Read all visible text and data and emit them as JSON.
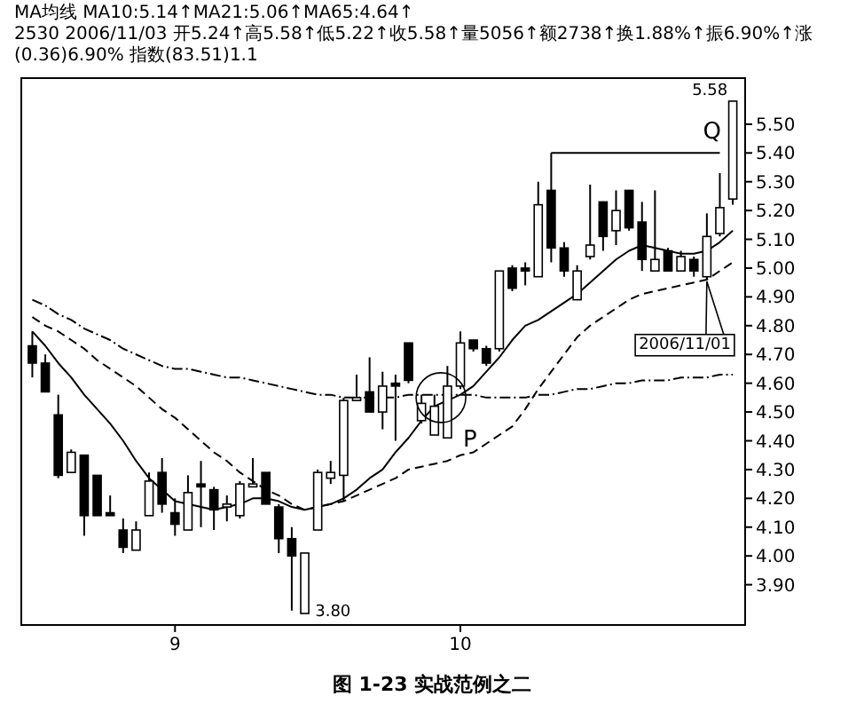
{
  "chart_data": {
    "type": "candlestick",
    "title": "图 1-23  实战范例之二",
    "annotations": [
      "MA均线 MA10:5.14↑MA21:5.06↑MA65:4.64↑",
      "2530 2006/11/03 开5.24↑高5.58↑低5.22↑收5.58↑量5056↑额2738↑换1.88%↑振6.90%↑涨(0.36)6.90% 指数(83.51)1.1",
      "P",
      "Q",
      "2006/11/01",
      "5.58",
      "3.80"
    ],
    "categories": [
      null,
      null,
      null,
      null,
      null,
      null,
      null,
      null,
      null,
      null,
      null,
      "9",
      null,
      null,
      null,
      null,
      null,
      null,
      null,
      null,
      null,
      null,
      null,
      null,
      null,
      null,
      null,
      null,
      null,
      null,
      null,
      null,
      null,
      "10",
      null,
      null,
      null,
      null,
      null,
      null,
      null,
      null,
      null,
      null,
      null,
      null,
      null,
      null,
      null,
      null,
      null,
      null,
      null,
      null,
      null
    ],
    "ohlc": [
      [
        4.73,
        4.78,
        4.62,
        4.67
      ],
      [
        4.67,
        4.7,
        4.57,
        4.57
      ],
      [
        4.49,
        4.56,
        4.27,
        4.28
      ],
      [
        4.29,
        4.37,
        4.29,
        4.36
      ],
      [
        4.35,
        4.35,
        4.07,
        4.14
      ],
      [
        4.28,
        4.28,
        4.14,
        4.14
      ],
      [
        4.15,
        4.21,
        4.14,
        4.14
      ],
      [
        4.09,
        4.13,
        4.01,
        4.03
      ],
      [
        4.02,
        4.12,
        4.02,
        4.09
      ],
      [
        4.14,
        4.29,
        4.14,
        4.26
      ],
      [
        4.29,
        4.34,
        4.15,
        4.18
      ],
      [
        4.15,
        4.2,
        4.07,
        4.11
      ],
      [
        4.09,
        4.28,
        4.09,
        4.22
      ],
      [
        4.25,
        4.33,
        4.1,
        4.24
      ],
      [
        4.23,
        4.24,
        4.09,
        4.16
      ],
      [
        4.17,
        4.21,
        4.12,
        4.18
      ],
      [
        4.14,
        4.26,
        4.13,
        4.25
      ],
      [
        4.24,
        4.34,
        4.24,
        4.25
      ],
      [
        4.29,
        4.29,
        4.18,
        4.18
      ],
      [
        4.17,
        4.18,
        4.01,
        4.06
      ],
      [
        4.06,
        4.1,
        3.81,
        4.0
      ],
      [
        3.8,
        4.01,
        3.8,
        4.01
      ],
      [
        4.09,
        4.3,
        4.09,
        4.29
      ],
      [
        4.27,
        4.33,
        4.25,
        4.29
      ],
      [
        4.28,
        4.55,
        4.19,
        4.54
      ],
      [
        4.54,
        4.63,
        4.54,
        4.55
      ],
      [
        4.57,
        4.69,
        4.5,
        4.5
      ],
      [
        4.5,
        4.64,
        4.44,
        4.59
      ],
      [
        4.6,
        4.63,
        4.4,
        4.59
      ],
      [
        4.74,
        4.74,
        4.6,
        4.61
      ],
      [
        4.47,
        4.56,
        4.46,
        4.53
      ],
      [
        4.42,
        4.56,
        4.42,
        4.52
      ],
      [
        4.41,
        4.66,
        4.41,
        4.59
      ],
      [
        4.59,
        4.78,
        4.58,
        4.74
      ],
      [
        4.75,
        4.75,
        4.71,
        4.72
      ],
      [
        4.72,
        4.73,
        4.66,
        4.67
      ],
      [
        4.72,
        4.99,
        4.71,
        4.99
      ],
      [
        5.0,
        5.01,
        4.92,
        4.93
      ],
      [
        5.0,
        5.02,
        4.94,
        4.99
      ],
      [
        4.97,
        5.3,
        4.97,
        5.22
      ],
      [
        5.27,
        5.4,
        5.02,
        5.07
      ],
      [
        5.07,
        5.09,
        4.97,
        4.99
      ],
      [
        4.89,
        5.01,
        4.89,
        4.99
      ],
      [
        5.04,
        5.29,
        5.03,
        5.08
      ],
      [
        5.23,
        5.23,
        5.06,
        5.11
      ],
      [
        5.13,
        5.27,
        5.08,
        5.2
      ],
      [
        5.27,
        5.27,
        5.13,
        5.14
      ],
      [
        5.16,
        5.23,
        4.99,
        5.03
      ],
      [
        4.99,
        5.27,
        4.99,
        5.03
      ],
      [
        5.06,
        5.07,
        4.99,
        4.99
      ],
      [
        4.99,
        5.06,
        4.99,
        5.04
      ],
      [
        5.03,
        5.04,
        4.97,
        4.99
      ],
      [
        4.97,
        5.19,
        4.96,
        5.11
      ],
      [
        5.12,
        5.33,
        5.11,
        5.21
      ],
      [
        5.24,
        5.58,
        5.22,
        5.58
      ]
    ],
    "series": [
      {
        "type": "line",
        "line_style": "solid",
        "color": "#000000",
        "values": [
          4.78,
          4.73,
          4.67,
          4.62,
          4.56,
          4.51,
          4.46,
          4.4,
          4.33,
          4.27,
          4.23,
          4.19,
          4.18,
          4.17,
          4.16,
          4.17,
          4.18,
          4.2,
          4.2,
          4.19,
          4.17,
          4.16,
          4.17,
          4.18,
          4.2,
          4.23,
          4.27,
          4.3,
          4.36,
          4.41,
          4.47,
          4.52,
          4.54,
          4.56,
          4.59,
          4.64,
          4.69,
          4.75,
          4.8,
          4.82,
          4.85,
          4.88,
          4.91,
          4.95,
          4.99,
          5.03,
          5.06,
          5.08,
          5.07,
          5.06,
          5.05,
          5.05,
          5.06,
          5.09,
          5.13
        ]
      },
      {
        "type": "line",
        "line_style": "dashed",
        "color": "#000000",
        "values": [
          4.83,
          4.8,
          4.78,
          4.75,
          4.72,
          4.68,
          4.65,
          4.62,
          4.59,
          4.55,
          4.51,
          4.48,
          4.44,
          4.4,
          4.36,
          4.33,
          4.29,
          4.26,
          4.23,
          4.21,
          4.18,
          4.16,
          4.17,
          4.18,
          4.19,
          4.21,
          4.23,
          4.25,
          4.27,
          4.3,
          4.31,
          4.32,
          4.33,
          4.35,
          4.36,
          4.39,
          4.42,
          4.45,
          4.51,
          4.58,
          4.64,
          4.7,
          4.76,
          4.8,
          4.83,
          4.86,
          4.89,
          4.91,
          4.92,
          4.93,
          4.94,
          4.95,
          4.96,
          4.99,
          5.02
        ]
      },
      {
        "type": "line",
        "line_style": "dotted",
        "color": "#000000",
        "values": [
          4.89,
          4.87,
          4.84,
          4.82,
          4.79,
          4.77,
          4.75,
          4.72,
          4.7,
          4.68,
          4.66,
          4.65,
          4.65,
          4.64,
          4.63,
          4.62,
          4.62,
          4.61,
          4.6,
          4.59,
          4.58,
          4.57,
          4.56,
          4.56,
          4.55,
          4.55,
          4.55,
          4.55,
          4.55,
          4.56,
          4.56,
          4.56,
          4.56,
          4.56,
          4.56,
          4.55,
          4.55,
          4.55,
          4.55,
          4.56,
          4.56,
          4.57,
          4.58,
          4.58,
          4.59,
          4.6,
          4.6,
          4.61,
          4.61,
          4.61,
          4.62,
          4.62,
          4.62,
          4.63,
          4.63
        ]
      },
      {
        "type": "line",
        "line_style": "solid",
        "color": "#000000",
        "values": [
          null,
          null,
          null,
          null,
          null,
          null,
          null,
          null,
          null,
          null,
          null,
          null,
          null,
          null,
          null,
          null,
          null,
          null,
          null,
          null,
          null,
          null,
          null,
          null,
          null,
          null,
          null,
          null,
          null,
          null,
          null,
          null,
          null,
          null,
          null,
          null,
          null,
          null,
          null,
          null,
          5.4,
          5.4,
          5.4,
          5.4,
          5.4,
          5.4,
          5.4,
          5.4,
          5.4,
          5.4,
          5.4,
          5.4,
          5.4,
          5.4,
          null
        ]
      }
    ],
    "ylim": [
      3.76,
      5.66
    ],
    "yticks": [
      {
        "value": 3.9,
        "label": "3.90"
      },
      {
        "value": 4.0,
        "label": "4.00"
      },
      {
        "value": 4.1,
        "label": "4.10"
      },
      {
        "value": 4.2,
        "label": "4.20"
      },
      {
        "value": 4.3,
        "label": "4.30"
      },
      {
        "value": 4.4,
        "label": "4.40"
      },
      {
        "value": 4.5,
        "label": "4.50"
      },
      {
        "value": 4.6,
        "label": "4.60"
      },
      {
        "value": 4.7,
        "label": "4.70"
      },
      {
        "value": 4.8,
        "label": "4.80"
      },
      {
        "value": 4.9,
        "label": "4.90"
      },
      {
        "value": 5.0,
        "label": "5.00"
      },
      {
        "value": 5.1,
        "label": "5.10"
      },
      {
        "value": 5.2,
        "label": "5.20"
      },
      {
        "value": 5.3,
        "label": "5.30"
      },
      {
        "value": 5.4,
        "label": "5.40"
      },
      {
        "value": 5.5,
        "label": "5.50"
      }
    ]
  }
}
